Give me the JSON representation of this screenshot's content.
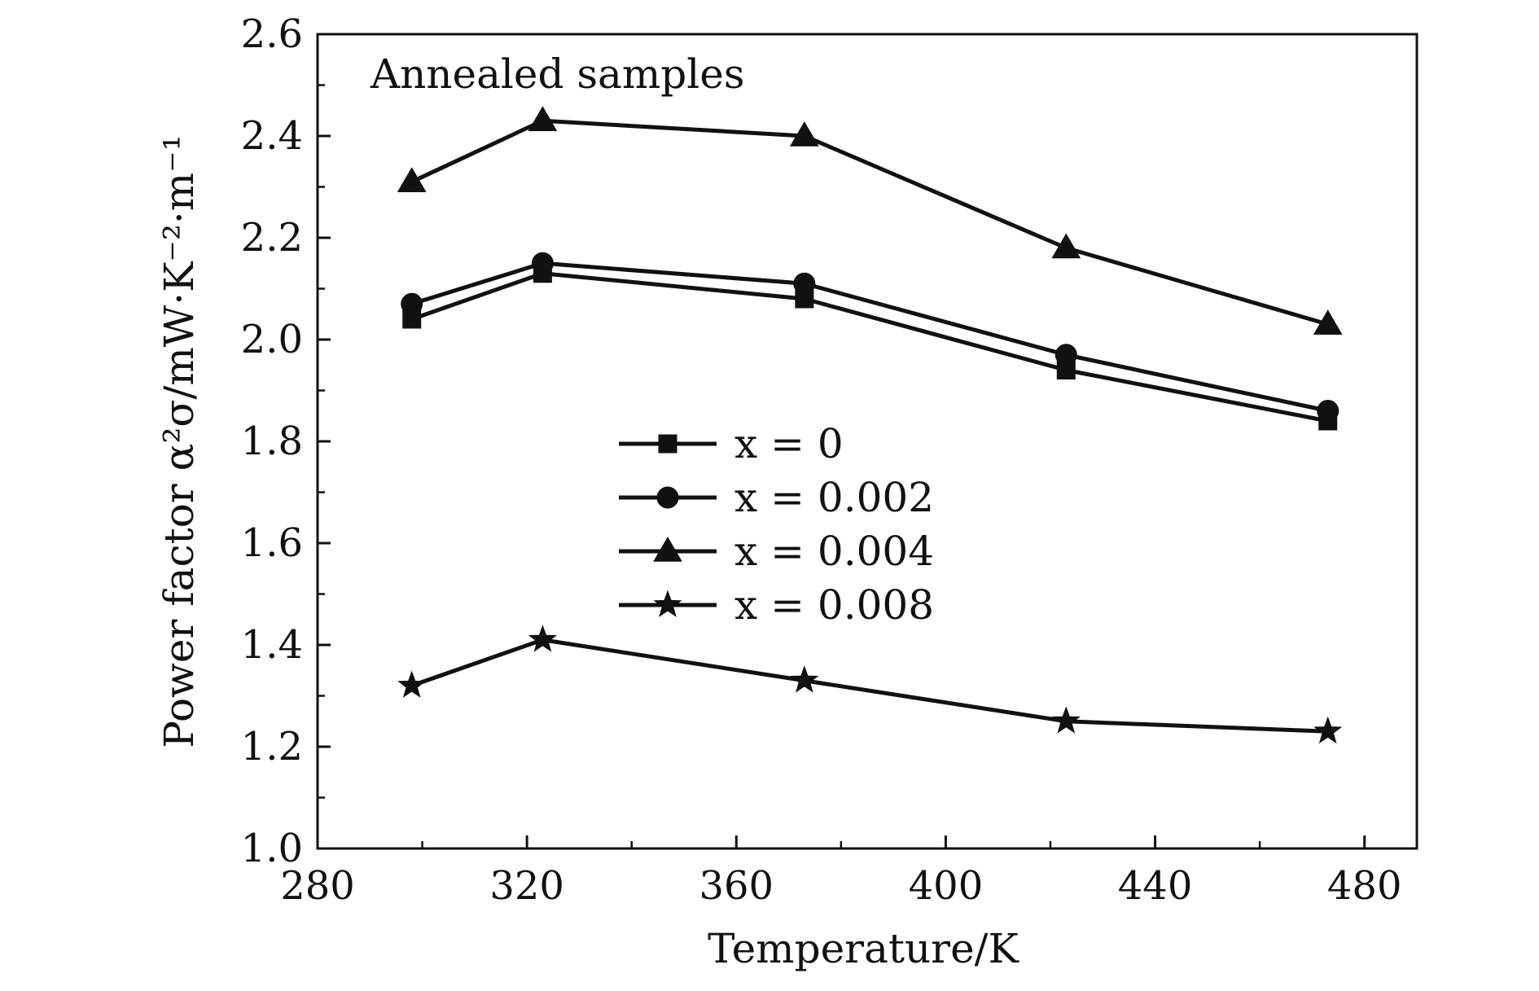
{
  "chart_data": {
    "type": "line",
    "title": "",
    "annotation": "Annealed samples",
    "xlabel": "Temperature/K",
    "ylabel": "Power factor α²σ/mW·K⁻²·m⁻¹",
    "xlim": [
      280,
      490
    ],
    "ylim": [
      1.0,
      2.6
    ],
    "xticks": [
      "280",
      "320",
      "360",
      "400",
      "440",
      "480"
    ],
    "yticks": [
      "1.0",
      "1.2",
      "1.4",
      "1.6",
      "1.8",
      "2.0",
      "2.2",
      "2.4",
      "2.6"
    ],
    "x": [
      298,
      323,
      373,
      423,
      473
    ],
    "grid": false,
    "legend_position": "center",
    "series": [
      {
        "name": "x = 0",
        "marker": "square",
        "values": [
          2.04,
          2.13,
          2.08,
          1.94,
          1.84
        ]
      },
      {
        "name": "x = 0.002",
        "marker": "circle",
        "values": [
          2.07,
          2.15,
          2.11,
          1.97,
          1.86
        ]
      },
      {
        "name": "x = 0.004",
        "marker": "triangle",
        "values": [
          2.31,
          2.43,
          2.4,
          2.18,
          2.03
        ]
      },
      {
        "name": "x = 0.008",
        "marker": "star",
        "values": [
          1.32,
          1.41,
          1.33,
          1.25,
          1.23
        ]
      }
    ],
    "colors": {
      "line": "#111111",
      "marker": "#111111"
    }
  }
}
